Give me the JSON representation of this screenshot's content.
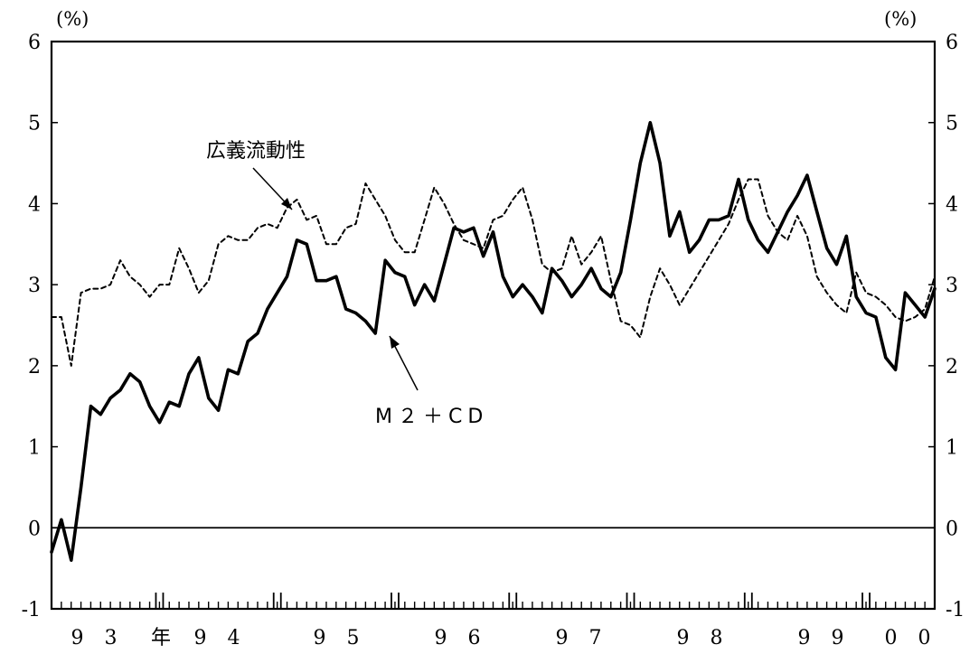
{
  "chart_data": {
    "type": "line",
    "y_unit_left": "(%)",
    "y_unit_right": "(%)",
    "ylim": [
      -1,
      6
    ],
    "y_ticks": [
      "-1",
      "0",
      "1",
      "2",
      "3",
      "4",
      "5",
      "6"
    ],
    "x_tick_labels": [
      "9 3",
      "年",
      "9 4",
      "9 5",
      "9 6",
      "9 7",
      "9 8",
      "9 9",
      "0 0"
    ],
    "x_range": [
      1993.083,
      2000.583
    ],
    "series": [
      {
        "name": "M2+CD",
        "style": "solid",
        "x": [
          1993.083,
          1993.167,
          1993.25,
          1993.333,
          1993.417,
          1993.5,
          1993.583,
          1993.667,
          1993.75,
          1993.833,
          1993.917,
          1994.0,
          1994.083,
          1994.167,
          1994.25,
          1994.333,
          1994.417,
          1994.5,
          1994.583,
          1994.667,
          1994.75,
          1994.833,
          1994.917,
          1995.0,
          1995.083,
          1995.167,
          1995.25,
          1995.333,
          1995.417,
          1995.5,
          1995.583,
          1995.667,
          1995.75,
          1995.833,
          1995.917,
          1996.0,
          1996.083,
          1996.167,
          1996.25,
          1996.333,
          1996.417,
          1996.5,
          1996.583,
          1996.667,
          1996.75,
          1996.833,
          1996.917,
          1997.0,
          1997.083,
          1997.167,
          1997.25,
          1997.333,
          1997.417,
          1997.5,
          1997.583,
          1997.667,
          1997.75,
          1997.833,
          1997.917,
          1998.0,
          1998.083,
          1998.167,
          1998.25,
          1998.333,
          1998.417,
          1998.5,
          1998.583,
          1998.667,
          1998.75,
          1998.833,
          1998.917,
          1999.0,
          1999.083,
          1999.167,
          1999.25,
          1999.333,
          1999.417,
          1999.5,
          1999.583,
          1999.667,
          1999.75,
          1999.833,
          1999.917,
          2000.0,
          2000.083,
          2000.167,
          2000.25,
          2000.333,
          2000.417,
          2000.5,
          2000.583
        ],
        "values": [
          -0.3,
          0.1,
          -0.4,
          0.5,
          1.5,
          1.4,
          1.6,
          1.7,
          1.9,
          1.8,
          1.5,
          1.3,
          1.55,
          1.5,
          1.9,
          2.1,
          1.6,
          1.45,
          1.95,
          1.9,
          2.3,
          2.4,
          2.7,
          2.9,
          3.1,
          3.55,
          3.5,
          3.05,
          3.05,
          3.1,
          2.7,
          2.65,
          2.55,
          2.4,
          3.3,
          3.15,
          3.1,
          2.75,
          3.0,
          2.8,
          3.25,
          3.7,
          3.65,
          3.7,
          3.35,
          3.65,
          3.1,
          2.85,
          3.0,
          2.85,
          2.65,
          3.2,
          3.05,
          2.85,
          3.0,
          3.2,
          2.95,
          2.85,
          3.15,
          3.8,
          4.5,
          5.0,
          4.5,
          3.6,
          3.9,
          3.4,
          3.55,
          3.8,
          3.8,
          3.85,
          4.3,
          3.8,
          3.55,
          3.4,
          3.65,
          3.9,
          4.1,
          4.35,
          3.9,
          3.45,
          3.25,
          3.6,
          2.85,
          2.65,
          2.6,
          2.1,
          1.95,
          2.9,
          2.75,
          2.6,
          2.95
        ]
      },
      {
        "name": "広義流動性",
        "style": "dashed",
        "x": [
          1993.083,
          1993.167,
          1993.25,
          1993.333,
          1993.417,
          1993.5,
          1993.583,
          1993.667,
          1993.75,
          1993.833,
          1993.917,
          1994.0,
          1994.083,
          1994.167,
          1994.25,
          1994.333,
          1994.417,
          1994.5,
          1994.583,
          1994.667,
          1994.75,
          1994.833,
          1994.917,
          1995.0,
          1995.083,
          1995.167,
          1995.25,
          1995.333,
          1995.417,
          1995.5,
          1995.583,
          1995.667,
          1995.75,
          1995.833,
          1995.917,
          1996.0,
          1996.083,
          1996.167,
          1996.25,
          1996.333,
          1996.417,
          1996.5,
          1996.583,
          1996.667,
          1996.75,
          1996.833,
          1996.917,
          1997.0,
          1997.083,
          1997.167,
          1997.25,
          1997.333,
          1997.417,
          1997.5,
          1997.583,
          1997.667,
          1997.75,
          1997.833,
          1997.917,
          1998.0,
          1998.083,
          1998.167,
          1998.25,
          1998.333,
          1998.417,
          1998.5,
          1998.583,
          1998.667,
          1998.75,
          1998.833,
          1998.917,
          1999.0,
          1999.083,
          1999.167,
          1999.25,
          1999.333,
          1999.417,
          1999.5,
          1999.583,
          1999.667,
          1999.75,
          1999.833,
          1999.917,
          2000.0,
          2000.083,
          2000.167,
          2000.25,
          2000.333,
          2000.417,
          2000.5,
          2000.583
        ],
        "values": [
          2.6,
          2.6,
          2.0,
          2.9,
          2.95,
          2.95,
          3.0,
          3.3,
          3.1,
          3.0,
          2.85,
          3.0,
          3.0,
          3.45,
          3.2,
          2.9,
          3.05,
          3.5,
          3.6,
          3.55,
          3.55,
          3.7,
          3.75,
          3.7,
          3.95,
          4.05,
          3.8,
          3.85,
          3.5,
          3.5,
          3.7,
          3.75,
          4.25,
          4.05,
          3.85,
          3.55,
          3.4,
          3.4,
          3.8,
          4.2,
          4.0,
          3.75,
          3.55,
          3.5,
          3.45,
          3.8,
          3.85,
          4.05,
          4.2,
          3.8,
          3.25,
          3.15,
          3.2,
          3.6,
          3.25,
          3.4,
          3.6,
          3.05,
          2.55,
          2.5,
          2.35,
          2.85,
          3.2,
          3.0,
          2.75,
          2.95,
          3.15,
          3.35,
          3.55,
          3.75,
          4.05,
          4.3,
          4.3,
          3.85,
          3.65,
          3.55,
          3.85,
          3.6,
          3.1,
          2.9,
          2.75,
          2.65,
          3.15,
          2.9,
          2.85,
          2.75,
          2.6,
          2.55,
          2.6,
          2.7,
          3.1
        ]
      }
    ],
    "annotations": [
      {
        "text": "広義流動性",
        "target_series": "広義流動性"
      },
      {
        "text": "M２＋CD",
        "target_series": "M2+CD"
      }
    ]
  }
}
